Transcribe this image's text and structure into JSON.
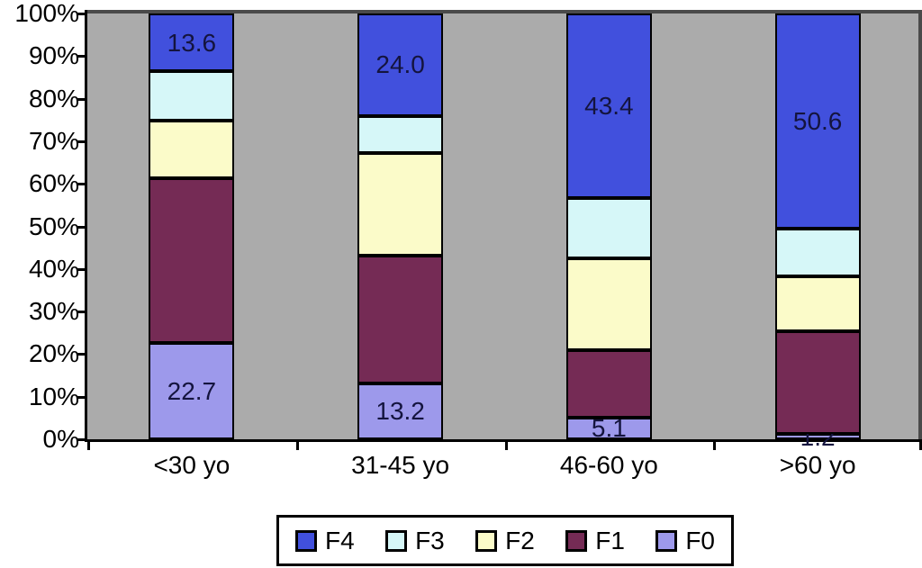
{
  "colors": {
    "plot_background": "#ABABAB",
    "plot_border": "#4a4a4a",
    "axis": "#000000",
    "data_label": "#14143e",
    "legend_background": "#ffffff"
  },
  "chart_data": {
    "type": "bar",
    "subtype": "100%-stacked-column",
    "title": "",
    "xlabel": "",
    "ylabel": "",
    "ylim": [
      0,
      100
    ],
    "grid": false,
    "legend_position": "bottom-center",
    "categories": [
      "<30 yo",
      "31-45 yo",
      "46-60 yo",
      ">60 yo"
    ],
    "y_ticks": [
      "100%",
      "90%",
      "80%",
      "70%",
      "60%",
      "50%",
      "40%",
      "30%",
      "20%",
      "10%",
      "0%"
    ],
    "series": [
      {
        "name": "F0",
        "color": "#9D99EB",
        "values": [
          22.7,
          13.2,
          5.1,
          1.2
        ],
        "value_labels": [
          "22.7",
          "13.2",
          "5.1",
          "1.2"
        ]
      },
      {
        "name": "F1",
        "color": "#752B55",
        "values": [
          38.6,
          30.0,
          15.8,
          24.2
        ],
        "value_labels": null
      },
      {
        "name": "F2",
        "color": "#FBFBC9",
        "values": [
          13.5,
          24.1,
          21.7,
          12.8
        ],
        "value_labels": null
      },
      {
        "name": "F3",
        "color": "#D6F7F8",
        "values": [
          11.6,
          8.7,
          14.0,
          11.2
        ],
        "value_labels": null
      },
      {
        "name": "F4",
        "color": "#4150DD",
        "values": [
          13.6,
          24.0,
          43.4,
          50.6
        ],
        "value_labels": [
          "13.6",
          "24.0",
          "43.4",
          "50.6"
        ]
      }
    ],
    "legend_order": [
      "F4",
      "F3",
      "F2",
      "F1",
      "F0"
    ]
  }
}
